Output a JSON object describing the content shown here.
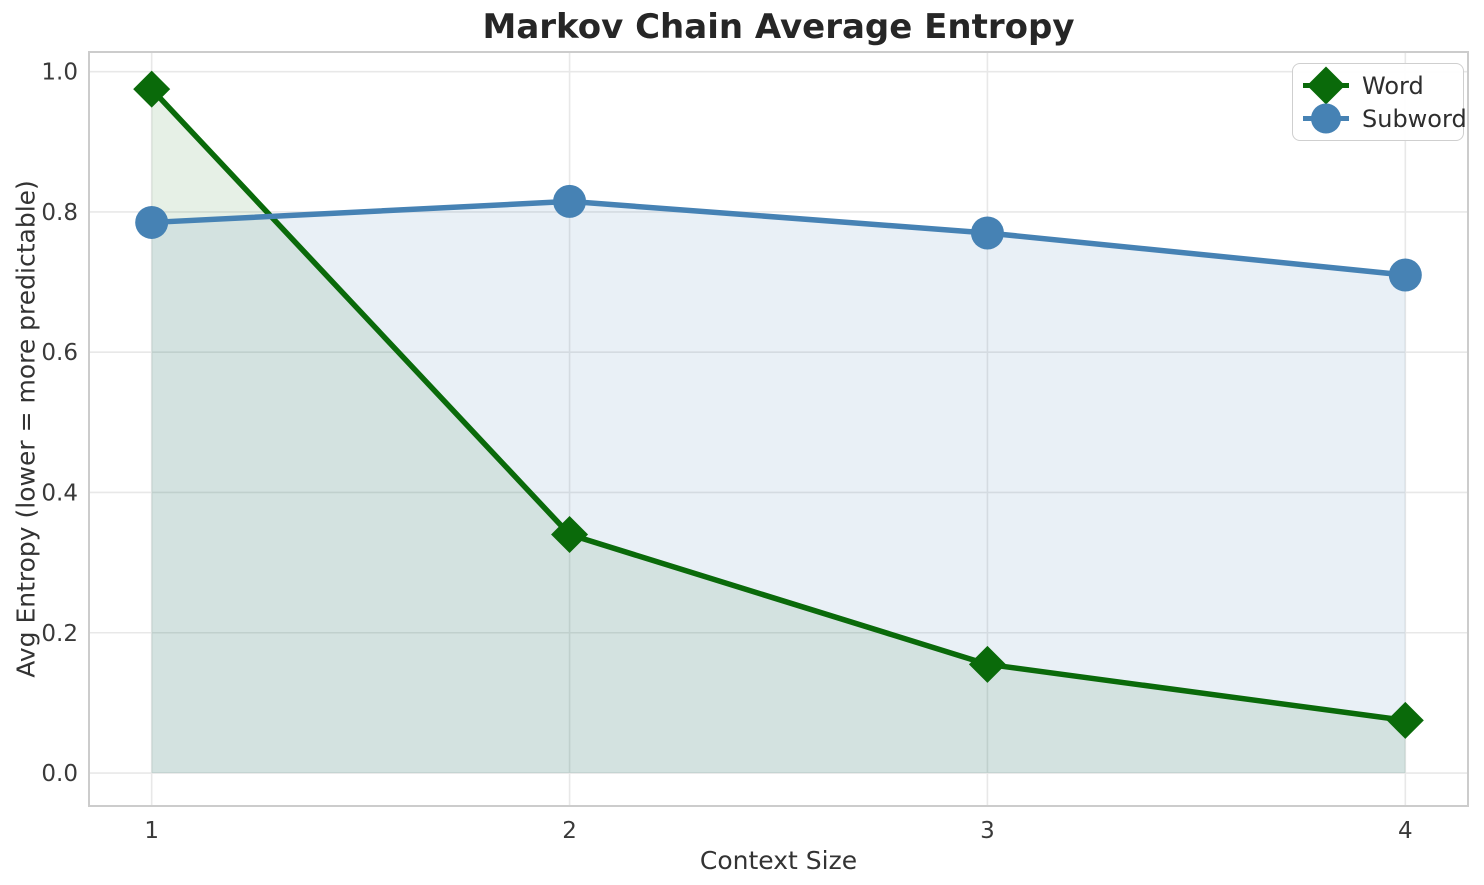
{
  "chart_data": {
    "type": "line",
    "title": "Markov Chain Average Entropy",
    "xlabel": "Context Size",
    "ylabel": "Avg Entropy (lower = more predictable)",
    "x": [
      1,
      2,
      3,
      4
    ],
    "x_tick_labels": [
      "1",
      "2",
      "3",
      "4"
    ],
    "y_ticks": [
      0.0,
      0.2,
      0.4,
      0.6,
      0.8,
      1.0
    ],
    "y_tick_labels": [
      "0.0",
      "0.2",
      "0.4",
      "0.6",
      "0.8",
      "1.0"
    ],
    "xlim": [
      0.85,
      4.15
    ],
    "ylim": [
      -0.047,
      1.028
    ],
    "grid": true,
    "legend_position": "upper right",
    "series": [
      {
        "name": "Word",
        "color": "#0a6a0a",
        "marker": "diamond",
        "fill_to_zero": true,
        "fill_alpha": 0.1,
        "values": [
          0.975,
          0.34,
          0.155,
          0.075
        ]
      },
      {
        "name": "Subword",
        "color": "#4682b4",
        "marker": "circle",
        "fill_to_zero": true,
        "fill_alpha": 0.12,
        "values": [
          0.785,
          0.815,
          0.77,
          0.71
        ]
      }
    ],
    "plot_background": "#ffffff",
    "grid_color": "#e8e8e8",
    "frame_color": "#cccccc",
    "text_color": "#3a3a3a"
  }
}
